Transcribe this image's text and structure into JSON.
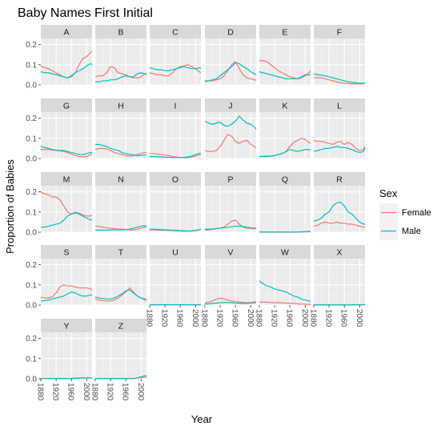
{
  "chart_data": {
    "type": "line",
    "title": "Baby Names First Initial",
    "xlabel": "Year",
    "ylabel": "Proportion of Babies",
    "xlim": [
      1880,
      2014
    ],
    "ylim": [
      0,
      0.23
    ],
    "x_ticks": [
      "1880",
      "1920",
      "1960",
      "2000"
    ],
    "y_ticks": [
      "0.0",
      "0.1",
      "0.2"
    ],
    "grid": true,
    "layout": "facets in 6 columns, 5 rows; x tick labels rotated 90 degrees",
    "legend": {
      "title": "Sex",
      "placement": "right",
      "items": [
        {
          "label": "Female",
          "color": "#F8766D"
        },
        {
          "label": "Male",
          "color": "#00BFC4"
        }
      ]
    },
    "x_years": [
      1880,
      1890,
      1900,
      1910,
      1920,
      1930,
      1940,
      1950,
      1960,
      1970,
      1980,
      1990,
      2000,
      2010,
      2014
    ],
    "facets": [
      {
        "label": "A",
        "Female": [
          0.095,
          0.085,
          0.08,
          0.07,
          0.06,
          0.05,
          0.04,
          0.035,
          0.04,
          0.06,
          0.1,
          0.13,
          0.14,
          0.16,
          0.165
        ],
        "Male": [
          0.065,
          0.06,
          0.06,
          0.055,
          0.05,
          0.045,
          0.04,
          0.035,
          0.045,
          0.06,
          0.07,
          0.08,
          0.095,
          0.105,
          0.1
        ]
      },
      {
        "label": "B",
        "Female": [
          0.04,
          0.045,
          0.045,
          0.06,
          0.09,
          0.085,
          0.06,
          0.055,
          0.05,
          0.04,
          0.035,
          0.035,
          0.04,
          0.055,
          0.05
        ],
        "Male": [
          0.015,
          0.015,
          0.02,
          0.02,
          0.025,
          0.025,
          0.03,
          0.04,
          0.045,
          0.04,
          0.04,
          0.055,
          0.06,
          0.055,
          0.055
        ]
      },
      {
        "label": "C",
        "Female": [
          0.06,
          0.055,
          0.05,
          0.05,
          0.045,
          0.045,
          0.06,
          0.08,
          0.09,
          0.095,
          0.1,
          0.09,
          0.08,
          0.065,
          0.06
        ],
        "Male": [
          0.085,
          0.08,
          0.075,
          0.075,
          0.07,
          0.07,
          0.075,
          0.08,
          0.085,
          0.09,
          0.085,
          0.08,
          0.08,
          0.085,
          0.08
        ]
      },
      {
        "label": "D",
        "Female": [
          0.015,
          0.02,
          0.02,
          0.025,
          0.03,
          0.045,
          0.07,
          0.1,
          0.115,
          0.08,
          0.05,
          0.035,
          0.03,
          0.025,
          0.022
        ],
        "Male": [
          0.02,
          0.02,
          0.025,
          0.03,
          0.045,
          0.06,
          0.075,
          0.09,
          0.11,
          0.105,
          0.09,
          0.08,
          0.065,
          0.055,
          0.05
        ]
      },
      {
        "label": "E",
        "Female": [
          0.12,
          0.12,
          0.115,
          0.1,
          0.085,
          0.07,
          0.06,
          0.05,
          0.04,
          0.035,
          0.03,
          0.035,
          0.045,
          0.06,
          0.07
        ],
        "Male": [
          0.065,
          0.06,
          0.055,
          0.05,
          0.045,
          0.04,
          0.035,
          0.03,
          0.03,
          0.03,
          0.03,
          0.04,
          0.05,
          0.05,
          0.048
        ]
      },
      {
        "label": "F",
        "Female": [
          0.035,
          0.035,
          0.035,
          0.03,
          0.025,
          0.02,
          0.015,
          0.01,
          0.008,
          0.006,
          0.005,
          0.005,
          0.005,
          0.006,
          0.007
        ],
        "Male": [
          0.055,
          0.05,
          0.048,
          0.045,
          0.04,
          0.035,
          0.03,
          0.025,
          0.02,
          0.015,
          0.012,
          0.01,
          0.008,
          0.008,
          0.008
        ]
      },
      {
        "label": "G",
        "Female": [
          0.045,
          0.045,
          0.045,
          0.042,
          0.04,
          0.038,
          0.035,
          0.03,
          0.022,
          0.015,
          0.01,
          0.008,
          0.01,
          0.02,
          0.025
        ],
        "Male": [
          0.06,
          0.055,
          0.05,
          0.045,
          0.042,
          0.04,
          0.04,
          0.035,
          0.03,
          0.025,
          0.02,
          0.018,
          0.025,
          0.03,
          0.03
        ]
      },
      {
        "label": "H",
        "Female": [
          0.045,
          0.05,
          0.05,
          0.048,
          0.04,
          0.03,
          0.025,
          0.02,
          0.015,
          0.012,
          0.015,
          0.02,
          0.025,
          0.03,
          0.03
        ],
        "Male": [
          0.07,
          0.07,
          0.065,
          0.06,
          0.05,
          0.045,
          0.04,
          0.03,
          0.025,
          0.02,
          0.018,
          0.015,
          0.015,
          0.018,
          0.018
        ]
      },
      {
        "label": "I",
        "Female": [
          0.025,
          0.025,
          0.022,
          0.02,
          0.018,
          0.015,
          0.01,
          0.008,
          0.005,
          0.005,
          0.005,
          0.008,
          0.012,
          0.018,
          0.02
        ],
        "Male": [
          0.01,
          0.01,
          0.009,
          0.008,
          0.007,
          0.006,
          0.005,
          0.005,
          0.005,
          0.006,
          0.008,
          0.012,
          0.02,
          0.025,
          0.025
        ]
      },
      {
        "label": "J",
        "Female": [
          0.04,
          0.035,
          0.035,
          0.04,
          0.06,
          0.09,
          0.12,
          0.11,
          0.085,
          0.075,
          0.085,
          0.09,
          0.07,
          0.06,
          0.05
        ],
        "Male": [
          0.185,
          0.175,
          0.17,
          0.175,
          0.18,
          0.165,
          0.16,
          0.17,
          0.185,
          0.21,
          0.19,
          0.175,
          0.17,
          0.155,
          0.145
        ]
      },
      {
        "label": "K",
        "Female": [
          0.01,
          0.012,
          0.012,
          0.012,
          0.015,
          0.02,
          0.025,
          0.035,
          0.06,
          0.08,
          0.09,
          0.1,
          0.095,
          0.08,
          0.075
        ],
        "Male": [
          0.01,
          0.01,
          0.01,
          0.012,
          0.015,
          0.02,
          0.025,
          0.035,
          0.045,
          0.04,
          0.035,
          0.04,
          0.045,
          0.045,
          0.042
        ]
      },
      {
        "label": "L",
        "Female": [
          0.09,
          0.085,
          0.085,
          0.08,
          0.075,
          0.07,
          0.08,
          0.085,
          0.07,
          0.08,
          0.07,
          0.05,
          0.04,
          0.045,
          0.06
        ],
        "Male": [
          0.035,
          0.04,
          0.045,
          0.05,
          0.05,
          0.055,
          0.06,
          0.055,
          0.055,
          0.05,
          0.045,
          0.035,
          0.03,
          0.035,
          0.055
        ]
      },
      {
        "label": "M",
        "Female": [
          0.2,
          0.19,
          0.185,
          0.175,
          0.175,
          0.16,
          0.13,
          0.1,
          0.09,
          0.1,
          0.095,
          0.085,
          0.08,
          0.08,
          0.085
        ],
        "Male": [
          0.025,
          0.025,
          0.03,
          0.035,
          0.04,
          0.045,
          0.06,
          0.08,
          0.09,
          0.095,
          0.09,
          0.08,
          0.07,
          0.06,
          0.065
        ]
      },
      {
        "label": "N",
        "Female": [
          0.03,
          0.028,
          0.025,
          0.022,
          0.02,
          0.018,
          0.015,
          0.015,
          0.013,
          0.012,
          0.012,
          0.015,
          0.02,
          0.025,
          0.028
        ],
        "Male": [
          0.01,
          0.01,
          0.01,
          0.01,
          0.012,
          0.012,
          0.012,
          0.012,
          0.013,
          0.015,
          0.02,
          0.025,
          0.03,
          0.032,
          0.03
        ]
      },
      {
        "label": "O",
        "Female": [
          0.012,
          0.012,
          0.011,
          0.01,
          0.01,
          0.009,
          0.008,
          0.007,
          0.006,
          0.005,
          0.005,
          0.006,
          0.008,
          0.012,
          0.015
        ],
        "Male": [
          0.015,
          0.015,
          0.014,
          0.013,
          0.012,
          0.011,
          0.01,
          0.009,
          0.008,
          0.007,
          0.006,
          0.007,
          0.009,
          0.012,
          0.014
        ]
      },
      {
        "label": "P",
        "Female": [
          0.01,
          0.012,
          0.015,
          0.018,
          0.02,
          0.025,
          0.04,
          0.055,
          0.06,
          0.04,
          0.025,
          0.02,
          0.018,
          0.018,
          0.018
        ],
        "Male": [
          0.015,
          0.015,
          0.016,
          0.018,
          0.02,
          0.022,
          0.025,
          0.027,
          0.03,
          0.03,
          0.028,
          0.025,
          0.022,
          0.02,
          0.02
        ]
      },
      {
        "label": "Q",
        "Female": [
          0.001,
          0.001,
          0.001,
          0.001,
          0.001,
          0.001,
          0.001,
          0.001,
          0.001,
          0.001,
          0.001,
          0.001,
          0.002,
          0.002,
          0.002
        ],
        "Male": [
          0.001,
          0.001,
          0.001,
          0.001,
          0.001,
          0.001,
          0.001,
          0.001,
          0.001,
          0.001,
          0.001,
          0.002,
          0.003,
          0.004,
          0.004
        ]
      },
      {
        "label": "R",
        "Female": [
          0.03,
          0.035,
          0.045,
          0.05,
          0.045,
          0.045,
          0.05,
          0.045,
          0.045,
          0.04,
          0.04,
          0.035,
          0.03,
          0.025,
          0.025
        ],
        "Male": [
          0.055,
          0.06,
          0.07,
          0.09,
          0.1,
          0.13,
          0.145,
          0.15,
          0.13,
          0.1,
          0.09,
          0.07,
          0.05,
          0.04,
          0.04
        ]
      },
      {
        "label": "S",
        "Female": [
          0.04,
          0.035,
          0.035,
          0.04,
          0.06,
          0.09,
          0.1,
          0.095,
          0.095,
          0.09,
          0.085,
          0.085,
          0.085,
          0.08,
          0.075
        ],
        "Male": [
          0.02,
          0.022,
          0.025,
          0.03,
          0.035,
          0.04,
          0.045,
          0.055,
          0.065,
          0.06,
          0.05,
          0.045,
          0.045,
          0.05,
          0.05
        ]
      },
      {
        "label": "T",
        "Female": [
          0.03,
          0.025,
          0.022,
          0.02,
          0.02,
          0.025,
          0.035,
          0.05,
          0.065,
          0.085,
          0.065,
          0.045,
          0.035,
          0.025,
          0.02
        ],
        "Male": [
          0.04,
          0.035,
          0.033,
          0.03,
          0.03,
          0.035,
          0.045,
          0.055,
          0.07,
          0.075,
          0.06,
          0.045,
          0.035,
          0.03,
          0.03
        ]
      },
      {
        "label": "U",
        "Female": [
          0.001,
          0.001,
          0.001,
          0.001,
          0.001,
          0.001,
          0.001,
          0.001,
          0.001,
          0.001,
          0.001,
          0.001,
          0.001,
          0.001,
          0.001
        ],
        "Male": [
          0.002,
          0.002,
          0.002,
          0.002,
          0.002,
          0.002,
          0.002,
          0.002,
          0.002,
          0.002,
          0.002,
          0.002,
          0.002,
          0.002,
          0.002
        ]
      },
      {
        "label": "V",
        "Female": [
          0.01,
          0.015,
          0.02,
          0.03,
          0.035,
          0.03,
          0.025,
          0.02,
          0.018,
          0.015,
          0.013,
          0.012,
          0.013,
          0.015,
          0.017
        ],
        "Male": [
          0.005,
          0.006,
          0.008,
          0.01,
          0.012,
          0.013,
          0.013,
          0.012,
          0.01,
          0.009,
          0.008,
          0.009,
          0.01,
          0.012,
          0.013
        ]
      },
      {
        "label": "W",
        "Female": [
          0.015,
          0.015,
          0.014,
          0.013,
          0.012,
          0.012,
          0.011,
          0.01,
          0.009,
          0.008,
          0.006,
          0.005,
          0.004,
          0.003,
          0.003
        ],
        "Male": [
          0.12,
          0.105,
          0.095,
          0.09,
          0.08,
          0.075,
          0.07,
          0.065,
          0.055,
          0.045,
          0.04,
          0.03,
          0.025,
          0.02,
          0.02
        ]
      },
      {
        "label": "X",
        "Female": [
          0.001,
          0.001,
          0.001,
          0.001,
          0.001,
          0.001,
          0.001,
          0.001,
          0.001,
          0.001,
          0.001,
          0.001,
          0.001,
          0.001,
          0.001
        ],
        "Male": [
          0.001,
          0.001,
          0.001,
          0.001,
          0.001,
          0.001,
          0.001,
          0.001,
          0.001,
          0.001,
          0.001,
          0.002,
          0.002,
          0.002,
          0.002
        ]
      },
      {
        "label": "Y",
        "Female": [
          0.001,
          0.001,
          0.001,
          0.001,
          0.001,
          0.001,
          0.001,
          0.001,
          0.002,
          0.003,
          0.004,
          0.004,
          0.004,
          0.005,
          0.005
        ],
        "Male": [
          0.001,
          0.001,
          0.001,
          0.001,
          0.001,
          0.001,
          0.001,
          0.001,
          0.001,
          0.002,
          0.003,
          0.003,
          0.004,
          0.004,
          0.004
        ]
      },
      {
        "label": "Z",
        "Female": [
          0.001,
          0.001,
          0.001,
          0.001,
          0.001,
          0.001,
          0.001,
          0.001,
          0.001,
          0.001,
          0.001,
          0.003,
          0.006,
          0.008,
          0.008
        ],
        "Male": [
          0.001,
          0.001,
          0.001,
          0.001,
          0.001,
          0.001,
          0.001,
          0.001,
          0.001,
          0.001,
          0.001,
          0.004,
          0.01,
          0.015,
          0.014
        ]
      }
    ]
  }
}
